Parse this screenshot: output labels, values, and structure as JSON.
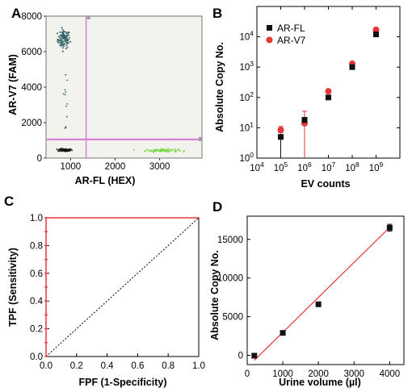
{
  "chart_data": [
    {
      "panel": "A",
      "type": "scatter",
      "xlabel": "AR-FL (HEX)",
      "ylabel": "AR-V7 (FAM)",
      "xticks": [
        "1000",
        "2000",
        "3000"
      ],
      "yticks": [
        "0",
        "2000",
        "4000",
        "6000",
        "8000"
      ],
      "xlim": [
        450,
        3950
      ],
      "ylim": [
        0,
        8000
      ],
      "threshold_x": 1350,
      "threshold_y": 1050,
      "clusters": [
        {
          "name": "",
          "color": "#2f5e64",
          "center": [
            850,
            6700
          ],
          "spread": [
            70,
            260
          ],
          "count": 90
        },
        {
          "name": "",
          "color": "#111111",
          "center": [
            880,
            450
          ],
          "spread": [
            80,
            40
          ],
          "count": 60
        },
        {
          "name": "",
          "color": "#7fd84a",
          "center": [
            3050,
            430
          ],
          "spread": [
            180,
            40
          ],
          "count": 90
        }
      ],
      "colors": {
        "threshold": "#d684d6",
        "background": "#f3f3ee"
      }
    },
    {
      "panel": "B",
      "type": "scatter",
      "xlabel": "EV counts",
      "ylabel": "Absolute Copy No.",
      "xscale": "log",
      "yscale": "log",
      "xlim": [
        10000,
        10000000000
      ],
      "ylim": [
        1,
        100000
      ],
      "xticks": [
        "10^4",
        "10^5",
        "10^6",
        "10^7",
        "10^8",
        "10^9"
      ],
      "yticks": [
        "10^0",
        "10^1",
        "10^2",
        "10^3",
        "10^4"
      ],
      "legend_position": "top-left",
      "series": [
        {
          "name": "AR-FL",
          "color": "#111111",
          "marker": "square",
          "x": [
            100000,
            1000000,
            10000000,
            100000000,
            1000000000
          ],
          "y": [
            5,
            18,
            100,
            1000,
            12000
          ],
          "err_low": [
            1,
            1,
            90,
            950,
            11000
          ],
          "err_high": [
            7,
            22,
            110,
            1050,
            13000
          ]
        },
        {
          "name": "AR-V7",
          "color": "#e8363b",
          "marker": "circle",
          "x": [
            100000,
            1000000,
            10000000,
            100000000,
            1000000000
          ],
          "y": [
            8.5,
            14,
            160,
            1300,
            17000
          ],
          "err_low": [
            6,
            1,
            150,
            1250,
            16000
          ],
          "err_high": [
            11,
            35,
            170,
            1350,
            18000
          ]
        }
      ]
    },
    {
      "panel": "C",
      "type": "line",
      "xlabel": "FPF (1-Specificity)",
      "ylabel": "TPF (Sensitivity)",
      "xlim": [
        0,
        1
      ],
      "ylim": [
        0,
        1
      ],
      "xticks": [
        "0.0",
        "0.2",
        "0.4",
        "0.6",
        "0.8",
        "1.0"
      ],
      "yticks": [
        "0.0",
        "0.2",
        "0.4",
        "0.6",
        "0.8",
        "1.0"
      ],
      "roc": {
        "x": [
          0,
          0,
          1
        ],
        "y": [
          0,
          1,
          1
        ],
        "color": "#e8363b"
      },
      "roc_points_y": [
        0,
        0.1,
        0.2,
        0.3,
        0.4,
        0.5,
        0.6,
        0.7,
        0.8,
        0.9,
        1.0
      ],
      "chance_line": {
        "x": [
          0,
          1
        ],
        "y": [
          0,
          1
        ]
      }
    },
    {
      "panel": "D",
      "type": "scatter",
      "xlabel": "Urine volume (µl)",
      "ylabel": "Absolute Copy No.",
      "xlim": [
        0,
        4400
      ],
      "ylim": [
        -1200,
        18000
      ],
      "xticks": [
        "0",
        "1000",
        "2000",
        "3000",
        "4000"
      ],
      "yticks": [
        "0",
        "5000",
        "10000",
        "15000"
      ],
      "series": [
        {
          "name": "",
          "color": "#111111",
          "marker": "square",
          "x": [
            200,
            1000,
            2000,
            4000
          ],
          "y": [
            -50,
            2900,
            6600,
            16500
          ],
          "err": [
            150,
            200,
            200,
            450
          ]
        }
      ],
      "fit": {
        "x": [
          200,
          4000
        ],
        "y": [
          -650,
          16550
        ],
        "color": "#e8363b"
      }
    }
  ],
  "panel_labels": [
    "A",
    "B",
    "C",
    "D"
  ]
}
